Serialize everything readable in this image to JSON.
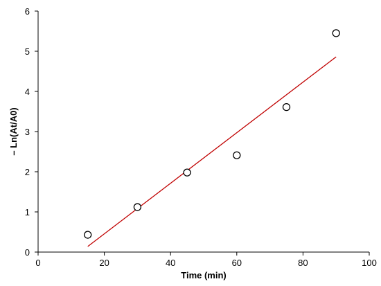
{
  "chart_data": {
    "type": "scatter",
    "title": "",
    "xlabel": "Time (min)",
    "ylabel": "– Ln(At/A0)",
    "xlim": [
      0,
      100
    ],
    "ylim": [
      0,
      6
    ],
    "x_ticks": [
      0,
      20,
      40,
      60,
      80,
      100
    ],
    "y_ticks": [
      0,
      1,
      2,
      3,
      4,
      5,
      6
    ],
    "grid": false,
    "legend": "none",
    "series": [
      {
        "marker": "open-circle",
        "color": "#000000",
        "points": [
          {
            "x": 15,
            "y": 0.43
          },
          {
            "x": 30,
            "y": 1.12
          },
          {
            "x": 45,
            "y": 1.98
          },
          {
            "x": 60,
            "y": 2.41
          },
          {
            "x": 75,
            "y": 3.61
          },
          {
            "x": 90,
            "y": 5.45
          }
        ]
      }
    ],
    "trendline": {
      "type": "linear",
      "color": "#c00000",
      "x_start": 15,
      "y_start": 0.14,
      "x_end": 90,
      "y_end": 4.86
    }
  }
}
